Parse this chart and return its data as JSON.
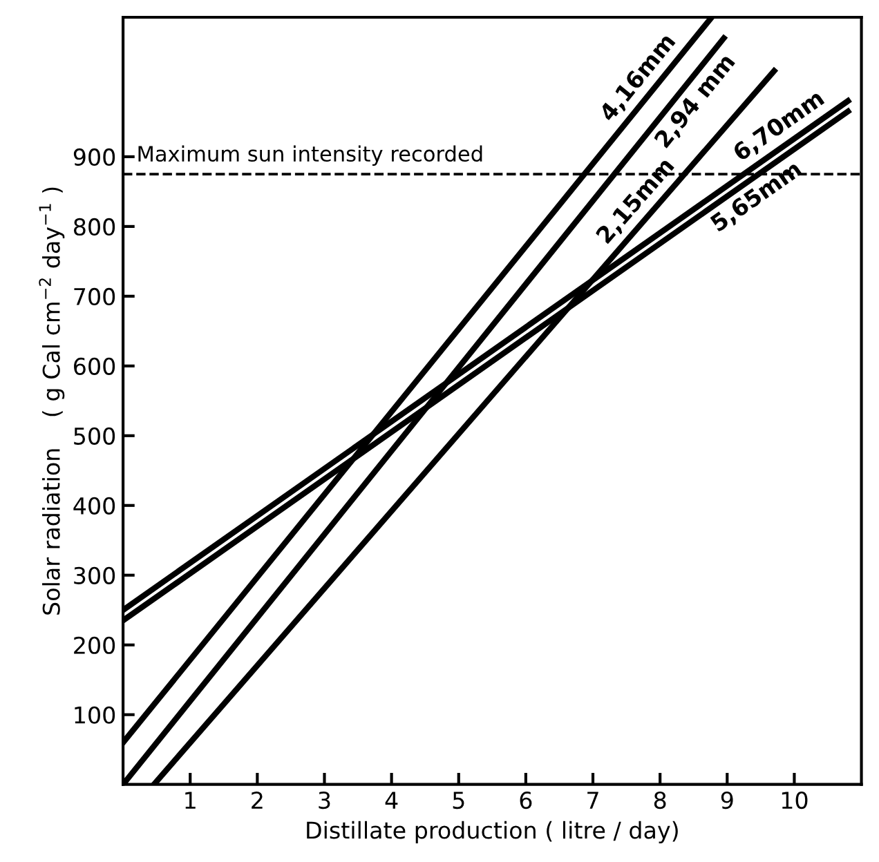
{
  "chart_data": {
    "type": "line",
    "xlabel": "Distillate production ( litre / day)",
    "ylabel": "Solar radiation    ( g Cal cm$^{−2}$ day$^{−1}$ )",
    "xlim": [
      0,
      11
    ],
    "ylim": [
      0,
      1100
    ],
    "xticks": [
      1,
      2,
      3,
      4,
      5,
      6,
      7,
      8,
      9,
      10
    ],
    "yticks": [
      100,
      200,
      300,
      400,
      500,
      600,
      700,
      800,
      900
    ],
    "series": [
      {
        "color": "#000000",
        "x": [
          0,
          8.77
        ],
        "values": [
          60,
          1100
        ]
      },
      {
        "color": "#000000",
        "x": [
          0,
          8.95
        ],
        "values": [
          0,
          1070
        ]
      },
      {
        "color": "#000000",
        "x": [
          0.46,
          9.7
        ],
        "values": [
          0,
          1023
        ]
      },
      {
        "color": "#000000",
        "x": [
          0,
          10.8
        ],
        "values": [
          250,
          980
        ]
      },
      {
        "color": "#000000",
        "x": [
          0,
          10.8
        ],
        "values": [
          235,
          965
        ]
      }
    ],
    "annotations": [
      "4,16mm",
      "2,94 mm",
      "2,15mm",
      "6,70mm",
      "5,65mm"
    ],
    "ref_lines": [
      {
        "axis": "y",
        "value": 875,
        "label": "Maximum sun intensity recorded",
        "line_style": "dashed",
        "color": "#000000"
      }
    ],
    "grid": false,
    "marker": "none",
    "line_style": "solid"
  }
}
